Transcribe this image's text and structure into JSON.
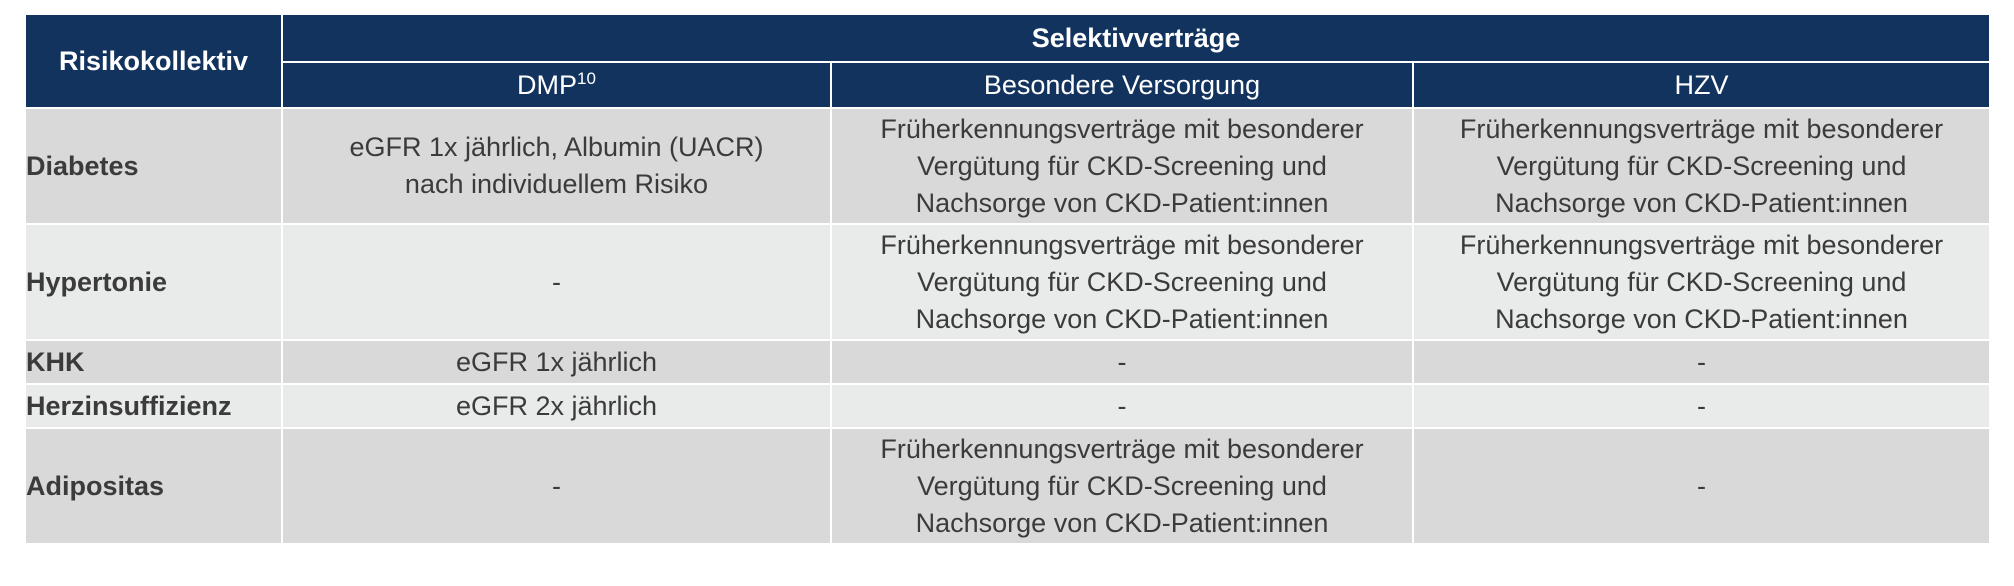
{
  "header": {
    "risk_label": "Risikokollektiv",
    "group_label": "Selektivverträge",
    "columns": [
      {
        "label": "DMP",
        "sup": "10"
      },
      {
        "label": "Besondere Versorgung"
      },
      {
        "label": "HZV"
      }
    ]
  },
  "rows": [
    {
      "label": "Diabetes",
      "cells": [
        [
          "eGFR 1x jährlich, Albumin (UACR)",
          "nach individuellem Risiko"
        ],
        [
          "Früherkennungsverträge mit besonderer",
          "Vergütung für CKD-Screening und",
          "Nachsorge von CKD-Patient:innen"
        ],
        [
          "Früherkennungsverträge mit besonderer",
          "Vergütung für CKD-Screening und",
          "Nachsorge von CKD-Patient:innen"
        ]
      ]
    },
    {
      "label": "Hypertonie",
      "cells": [
        [
          "-"
        ],
        [
          "Früherkennungsverträge mit besonderer",
          "Vergütung für CKD-Screening und",
          "Nachsorge von CKD-Patient:innen"
        ],
        [
          "Früherkennungsverträge mit besonderer",
          "Vergütung für CKD-Screening und",
          "Nachsorge von CKD-Patient:innen"
        ]
      ]
    },
    {
      "label": "KHK",
      "cells": [
        [
          "eGFR 1x jährlich"
        ],
        [
          "-"
        ],
        [
          "-"
        ]
      ]
    },
    {
      "label": "Herzinsuffizienz",
      "cells": [
        [
          "eGFR 2x jährlich"
        ],
        [
          "-"
        ],
        [
          "-"
        ]
      ]
    },
    {
      "label": "Adipositas",
      "cells": [
        [
          "-"
        ],
        [
          "Früherkennungsverträge mit besonderer",
          "Vergütung für CKD-Screening und",
          "Nachsorge von CKD-Patient:innen"
        ],
        [
          "-"
        ]
      ]
    }
  ]
}
